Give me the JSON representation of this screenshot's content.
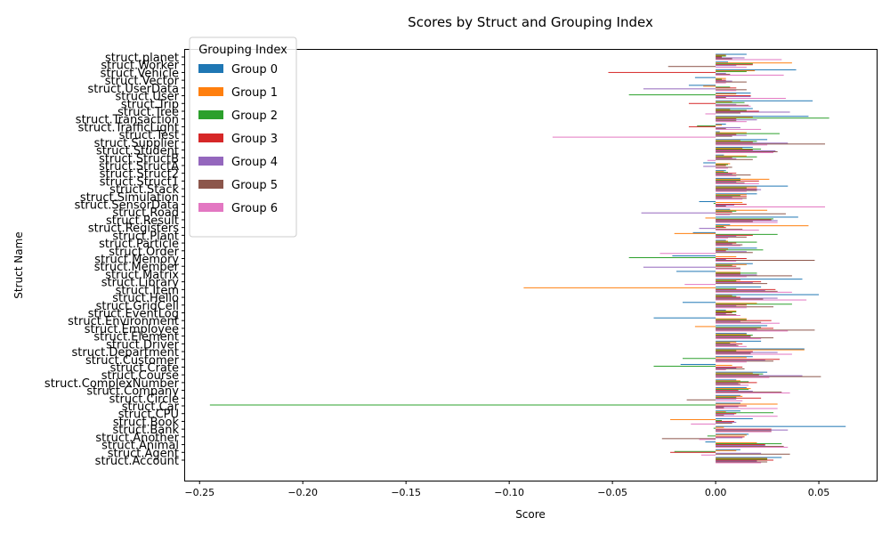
{
  "chart_data": {
    "type": "bar",
    "orientation": "horizontal",
    "title": "Scores by Struct and Grouping Index",
    "xlabel": "Score",
    "ylabel": "Struct Name",
    "xlim": [
      -0.257,
      0.078
    ],
    "xticks": [
      -0.25,
      -0.2,
      -0.15,
      -0.1,
      -0.05,
      0.0,
      0.05
    ],
    "xtick_labels": [
      "−0.25",
      "−0.20",
      "−0.15",
      "−0.10",
      "−0.05",
      "0.00",
      "0.05"
    ],
    "grid": false,
    "legend": {
      "title": "Grouping Index",
      "position": "top-left"
    },
    "categories": [
      "struct.Account",
      "struct.Agent",
      "struct.Animal",
      "struct.Another",
      "struct.Bank",
      "struct.Book",
      "struct.CPU",
      "struct.Car",
      "struct.Circle",
      "struct.Company",
      "struct.ComplexNumber",
      "struct.Course",
      "struct.Crate",
      "struct.Customer",
      "struct.Department",
      "struct.Driver",
      "struct.Element",
      "struct.Employee",
      "struct.Environment",
      "struct.EventLog",
      "struct.GridCell",
      "struct.Hello",
      "struct.Item",
      "struct.Library",
      "struct.Matrix",
      "struct.Member",
      "struct.Memory",
      "struct.Order",
      "struct.Particle",
      "struct.Plant",
      "struct.Registers",
      "struct.Result",
      "struct.Road",
      "struct.SensorData",
      "struct.Simulation",
      "struct.Stack",
      "struct.Struct1",
      "struct.Struct2",
      "struct.StructA",
      "struct.StructB",
      "struct.Student",
      "struct.Supplier",
      "struct.Test",
      "struct.TrafficLight",
      "struct.Transaction",
      "struct.Tree",
      "struct.Trip",
      "struct.User",
      "struct.UserData",
      "struct.Vector",
      "struct.Vehicle",
      "struct.Worker",
      "struct.planet"
    ],
    "series": [
      {
        "name": "Group 0",
        "color": "#1f77b4",
        "values": [
          0.032,
          0.012,
          -0.005,
          0.016,
          0.063,
          0.018,
          0.012,
          0.012,
          0.012,
          0.015,
          0.01,
          0.025,
          -0.017,
          0.018,
          0.043,
          0.022,
          0.015,
          0.025,
          -0.03,
          0.005,
          -0.016,
          0.05,
          0.022,
          0.042,
          -0.019,
          0.018,
          -0.021,
          0.02,
          0.005,
          -0.011,
          0.007,
          0.04,
          0.007,
          -0.008,
          0.02,
          0.035,
          0.012,
          0.005,
          -0.006,
          0.004,
          0.018,
          0.025,
          0.002,
          0.005,
          0.045,
          0.018,
          0.047,
          0.017,
          -0.013,
          -0.01,
          0.039,
          0.006,
          0.015
        ]
      },
      {
        "name": "Group 1",
        "color": "#ff7f0e",
        "values": [
          0.025,
          0.01,
          0.02,
          0.015,
          0.004,
          -0.022,
          0.005,
          0.03,
          0.013,
          0.017,
          0.012,
          0.018,
          0.008,
          0.015,
          0.043,
          0.01,
          0.015,
          -0.01,
          0.015,
          0.01,
          0.02,
          0.008,
          -0.093,
          0.012,
          0.012,
          0.015,
          0.01,
          0.006,
          0.006,
          -0.02,
          0.045,
          -0.005,
          0.025,
          0.013,
          0.015,
          0.02,
          0.026,
          0.004,
          0.007,
          0.015,
          0.013,
          0.012,
          0.015,
          0.003,
          0.018,
          0.007,
          0.008,
          0.01,
          -0.006,
          0.005,
          0.019,
          0.037,
          0.005
        ]
      },
      {
        "name": "Group 2",
        "color": "#2ca02c",
        "values": [
          0.025,
          -0.02,
          0.032,
          -0.004,
          -0.001,
          0.003,
          0.028,
          -0.245,
          0.01,
          0.016,
          0.016,
          0.023,
          -0.03,
          -0.016,
          0.01,
          0.007,
          0.018,
          0.022,
          0.015,
          0.01,
          0.037,
          0.01,
          0.01,
          0.01,
          0.02,
          0.008,
          -0.042,
          0.023,
          0.02,
          0.03,
          0.004,
          0.028,
          0.01,
          -0.001,
          0.012,
          0.015,
          0.012,
          0.006,
          0.006,
          0.02,
          0.022,
          0.02,
          0.031,
          -0.009,
          0.055,
          0.015,
          0.014,
          -0.042,
          0.007,
          0.003,
          0.015,
          0.018,
          0.005
        ]
      },
      {
        "name": "Group 3",
        "color": "#d62728",
        "values": [
          0.028,
          -0.022,
          0.024,
          0.014,
          0.027,
          0.009,
          0.01,
          0.015,
          0.022,
          0.011,
          0.02,
          0.021,
          0.013,
          0.031,
          0.018,
          0.013,
          0.017,
          0.028,
          0.027,
          0.008,
          0.015,
          0.012,
          0.029,
          0.022,
          0.012,
          0.01,
          0.015,
          0.005,
          0.01,
          0.018,
          0.005,
          0.027,
          0.008,
          0.015,
          0.015,
          0.02,
          0.021,
          0.01,
          0.005,
          0.008,
          0.018,
          0.018,
          0.01,
          -0.013,
          0.01,
          0.021,
          -0.013,
          0.017,
          0.01,
          0.005,
          -0.052,
          0.018,
          0.003
        ]
      },
      {
        "name": "Group 4",
        "color": "#9467bd",
        "values": [
          0.02,
          0.022,
          0.024,
          0.013,
          0.035,
          0.01,
          0.009,
          0.011,
          0.01,
          0.018,
          0.011,
          0.042,
          0.01,
          0.024,
          0.03,
          0.01,
          0.017,
          0.02,
          0.012,
          0.005,
          0.01,
          0.03,
          0.024,
          0.018,
          0.02,
          -0.035,
          0.005,
          0.015,
          0.008,
          0.01,
          -0.008,
          0.03,
          -0.036,
          0.009,
          0.008,
          0.022,
          0.01,
          0.008,
          -0.006,
          0.01,
          0.029,
          0.035,
          0.015,
          0.012,
          0.02,
          0.036,
          0.01,
          0.017,
          -0.035,
          0.008,
          0.005,
          0.01,
          0.014
        ]
      },
      {
        "name": "Group 5",
        "color": "#8c564b",
        "values": [
          0.025,
          0.036,
          0.033,
          -0.026,
          0.027,
          0.008,
          0.004,
          0.004,
          -0.014,
          0.032,
          0.012,
          0.051,
          0.014,
          0.028,
          0.017,
          0.011,
          0.028,
          0.048,
          0.022,
          0.01,
          0.028,
          0.023,
          0.03,
          0.025,
          0.037,
          0.012,
          0.048,
          0.018,
          0.013,
          0.015,
          0.013,
          0.018,
          0.034,
          0.005,
          0.015,
          0.02,
          0.014,
          0.017,
          0.008,
          0.018,
          0.03,
          0.053,
          0.008,
          0.005,
          0.01,
          0.012,
          0.016,
          0.005,
          0.015,
          0.015,
          0.007,
          -0.023,
          0.008
        ]
      },
      {
        "name": "Group 6",
        "color": "#e377c2",
        "values": [
          0.022,
          -0.007,
          0.035,
          -0.008,
          0.027,
          -0.012,
          0.03,
          0.03,
          0.013,
          0.036,
          0.016,
          0.026,
          0.005,
          0.015,
          0.037,
          0.015,
          0.022,
          0.035,
          0.031,
          0.012,
          0.015,
          0.044,
          0.037,
          -0.015,
          0.015,
          0.012,
          0.01,
          -0.027,
          0.012,
          0.006,
          0.021,
          0.03,
          0.007,
          0.053,
          0.013,
          0.015,
          0.021,
          0.01,
          0.006,
          -0.004,
          0.028,
          0.025,
          -0.079,
          0.022,
          0.015,
          -0.005,
          0.017,
          0.034,
          0.01,
          0.005,
          0.033,
          0.015,
          0.032
        ]
      }
    ]
  }
}
